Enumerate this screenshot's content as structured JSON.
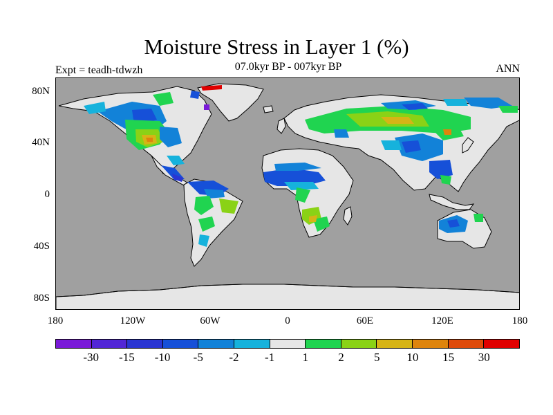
{
  "title": "Moisture Stress in Layer 1 (%)",
  "subtitle": "07.0kyr BP - 007kyr BP",
  "experiment": "Expt = teadh-tdwzh",
  "season": "ANN",
  "lat_ticks": [
    "80N",
    "40N",
    "0",
    "40S",
    "80S"
  ],
  "lon_ticks": [
    "180",
    "120W",
    "60W",
    "0",
    "60E",
    "120E",
    "180"
  ],
  "colorbar": {
    "colors": [
      "#7a1ad8",
      "#5226d6",
      "#2a35d2",
      "#1650d8",
      "#1282d8",
      "#16b2dc",
      "#e6e6e6",
      "#20d450",
      "#8ad216",
      "#d6b416",
      "#de840c",
      "#de4a0a",
      "#e00000"
    ],
    "labels": [
      "-30",
      "-15",
      "-10",
      "-5",
      "-2",
      "-1",
      "1",
      "2",
      "5",
      "10",
      "15",
      "30"
    ]
  },
  "colors": {
    "ocean": "#a0a0a0",
    "land": "#e6e6e6",
    "coast": "#000000"
  }
}
